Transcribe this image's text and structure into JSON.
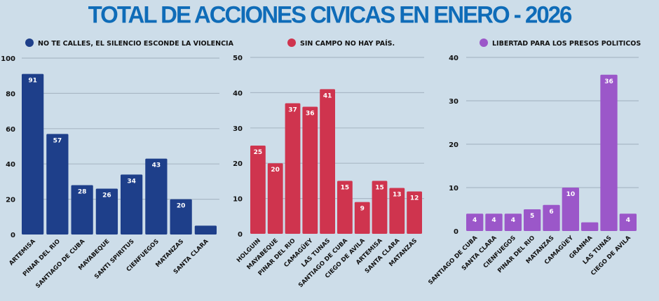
{
  "page_title": "TOTAL DE ACCIONES CIVICAS EN ENERO - 2026",
  "chart_data": [
    {
      "type": "bar",
      "title": "",
      "legend": "NO TE CALLES, EL SILENCIO ESCONDE LA VIOLENCIA",
      "legend_position": "top",
      "color": "#1e3f8a",
      "categories": [
        "ARTEMISA",
        "PINAR DEL RIO",
        "SANTIAGO DE CUBA",
        "MAYABEQUE",
        "SANTI SPIRITUS",
        "CIENFUEGOS",
        "MATANZAS",
        "SANTA CLARA"
      ],
      "values": [
        91,
        57,
        28,
        26,
        34,
        43,
        20,
        5
      ],
      "data_labels": [
        "91",
        "57",
        "28",
        "26",
        "34",
        "43",
        "20",
        ""
      ],
      "xlabel": "",
      "ylabel": "",
      "ylim": [
        0,
        100
      ],
      "yticks": [
        0,
        20,
        40,
        60,
        80,
        100
      ],
      "grid": true
    },
    {
      "type": "bar",
      "title": "",
      "legend": "SIN CAMPO NO HAY PAÍS.",
      "legend_position": "top",
      "color": "#cf344e",
      "categories": [
        "HOLGUIN",
        "MAYABEQUE",
        "PINAR DEL RIO",
        "CAMAGÜEY",
        "LAS TUNAS",
        "SANTIAGO DE CUBA",
        "CIEGO DE AVILA",
        "ARTEMISA",
        "SANTA CLARA",
        "MATANZAS"
      ],
      "values": [
        25,
        20,
        37,
        36,
        41,
        15,
        9,
        15,
        13,
        12
      ],
      "data_labels": [
        "25",
        "20",
        "37",
        "36",
        "41",
        "15",
        "9",
        "15",
        "13",
        "12"
      ],
      "xlabel": "",
      "ylabel": "",
      "ylim": [
        0,
        50
      ],
      "yticks": [
        0,
        10,
        20,
        30,
        40,
        50
      ],
      "grid": true
    },
    {
      "type": "bar",
      "title": "",
      "legend": "LIBERTAD PARA LOS PRESOS POLITICOS",
      "legend_position": "top",
      "color": "#9b57c9",
      "categories": [
        "SANTIAGO DE CUBA",
        "SANTA CLARA",
        "CIENFUEGOS",
        "PINAR DEL RIO",
        "MATANZAS",
        "CAMAGÜEY",
        "GRANMA",
        "LAS TUNAS",
        "CIEGO DE AVILA"
      ],
      "values": [
        4,
        4,
        4,
        5,
        6,
        10,
        2,
        36,
        4
      ],
      "data_labels": [
        "4",
        "4",
        "4",
        "5",
        "6",
        "10",
        "",
        "36",
        "4"
      ],
      "xlabel": "",
      "ylabel": "",
      "ylim": [
        0,
        40
      ],
      "yticks": [
        0,
        10,
        20,
        30,
        40
      ],
      "grid": true
    }
  ]
}
